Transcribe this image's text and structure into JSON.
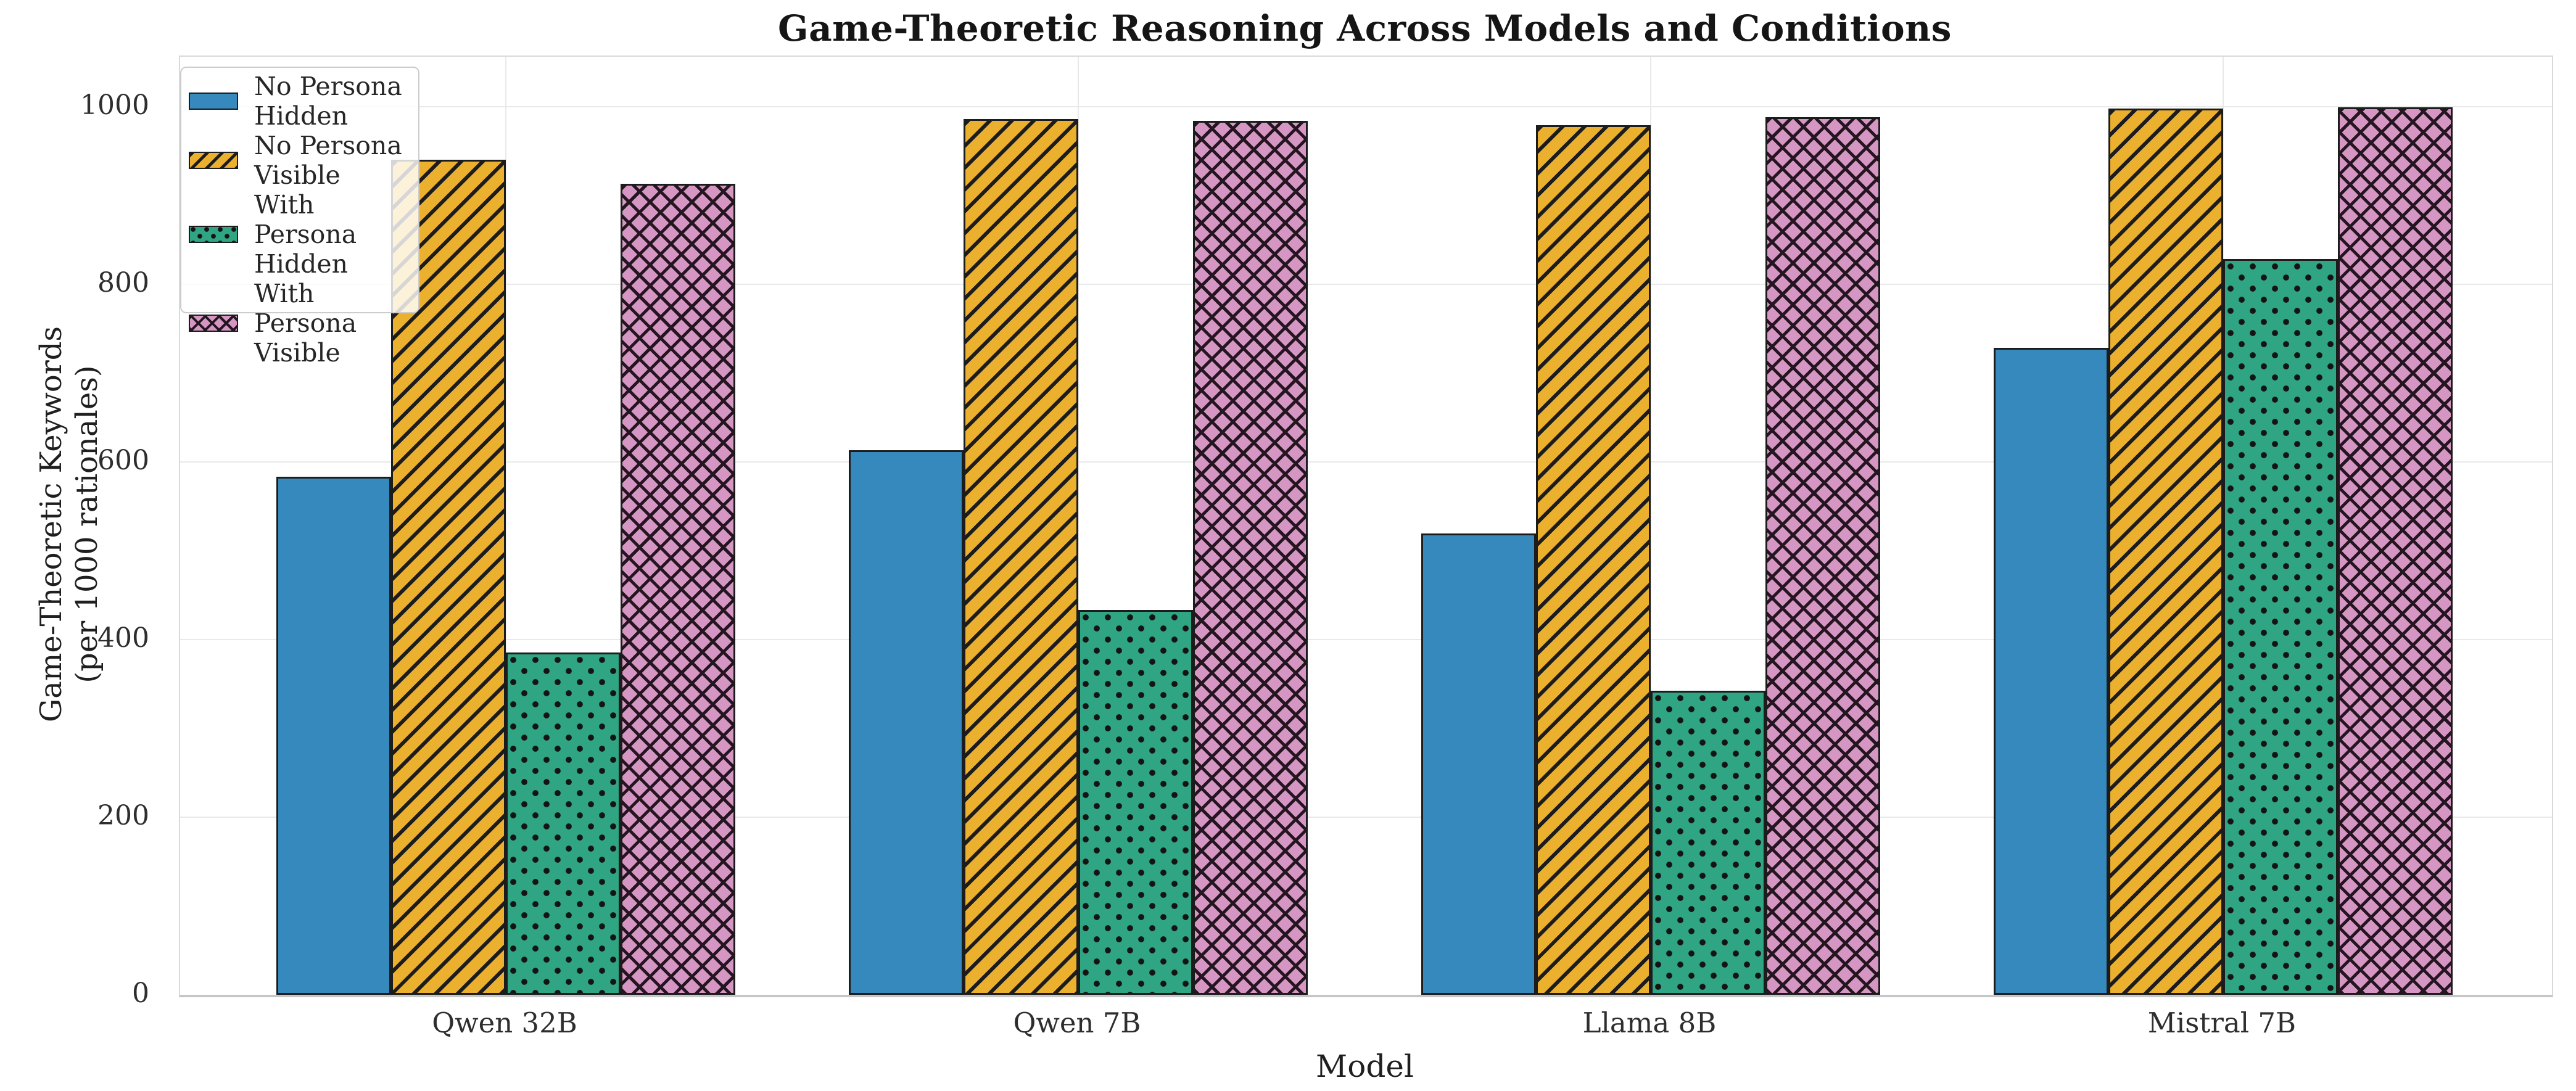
{
  "chart_data": {
    "type": "bar",
    "title": "Game-Theoretic Reasoning Across Models and Conditions",
    "xlabel": "Model",
    "ylabel": "Game-Theoretic Keywords (per 1000 rationales)",
    "ylabel_lines": [
      "Game-Theoretic Keywords",
      "(per 1000 rationales)"
    ],
    "categories": [
      "Qwen 32B",
      "Qwen 7B",
      "Llama 8B",
      "Mistral 7B"
    ],
    "series": [
      {
        "name": "No Persona Hidden",
        "legend_lines": [
          "No Persona",
          "Hidden"
        ],
        "color": "#3589bd",
        "hatch": "none",
        "values": [
          583,
          613,
          519,
          728
        ]
      },
      {
        "name": "No Persona Visible",
        "legend_lines": [
          "No Persona",
          "Visible"
        ],
        "color": "#ecb02f",
        "hatch": "slash",
        "values": [
          940,
          986,
          979,
          998
        ]
      },
      {
        "name": "With Persona Hidden",
        "legend_lines": [
          "With Persona",
          "Hidden"
        ],
        "color": "#30a583",
        "hatch": "dot",
        "values": [
          385,
          433,
          342,
          828
        ]
      },
      {
        "name": "With Persona Visible",
        "legend_lines": [
          "With Persona",
          "Visible"
        ],
        "color": "#d596c3",
        "hatch": "cross",
        "values": [
          913,
          984,
          988,
          999
        ]
      }
    ],
    "yticks": [
      0,
      200,
      400,
      600,
      800,
      1000
    ],
    "ylim": [
      0,
      1056
    ],
    "grid": true,
    "legend_position": "upper-left",
    "edge_color": "#1c1c1c",
    "hatch_color": "#1c1c1c",
    "gridline_color": "#e9e9e9"
  }
}
